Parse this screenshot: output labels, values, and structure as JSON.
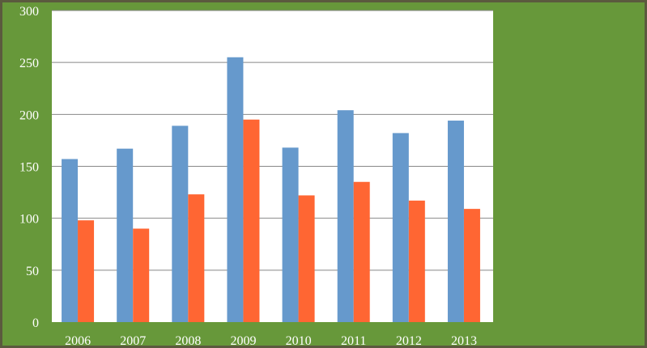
{
  "chart_data": {
    "type": "bar",
    "categories": [
      "2006",
      "2007",
      "2008",
      "2009",
      "2010",
      "2011",
      "2012",
      "2013"
    ],
    "series": [
      {
        "values": [
          157,
          167,
          189,
          255,
          168,
          204,
          182,
          194
        ],
        "color": "#6699cc"
      },
      {
        "values": [
          98,
          90,
          123,
          195,
          122,
          135,
          117,
          109
        ],
        "color": "#ff6633"
      }
    ],
    "ylim": [
      0,
      300
    ],
    "yticks": [
      0,
      50,
      100,
      150,
      200,
      250,
      300
    ],
    "grid": true,
    "legend": "none",
    "plot_background": "#ffffff",
    "gridline_color": "#888888",
    "page_background": "#67983a"
  }
}
